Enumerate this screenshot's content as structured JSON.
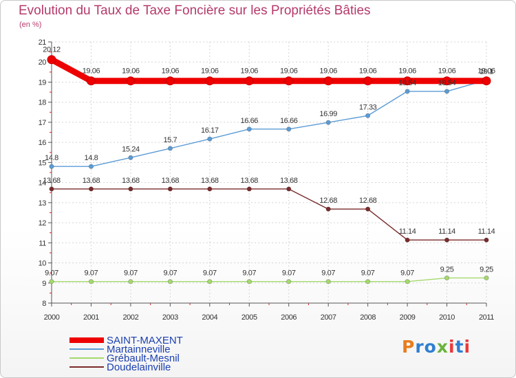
{
  "header": {
    "title": "Evolution du Taux de Taxe Foncière sur les Propriétés Bâties",
    "subtitle": "(en %)"
  },
  "logo": {
    "text": "Proxiti",
    "letter_colors": [
      "#e87d1e",
      "#2f7fd1",
      "#2f7fd1",
      "#6ab33c",
      "#e83a3a",
      "#2f7fd1",
      "#e83a3a"
    ]
  },
  "chart_data": {
    "type": "line",
    "x": [
      "2000",
      "2001",
      "2002",
      "2003",
      "2004",
      "2005",
      "2006",
      "2007",
      "2008",
      "2009",
      "2010",
      "2011"
    ],
    "ylim": [
      8,
      21
    ],
    "yticks": [
      "8",
      "9",
      "10",
      "11",
      "12",
      "13",
      "14",
      "15",
      "16",
      "17",
      "18",
      "19",
      "20",
      "21"
    ],
    "grid": true,
    "legend_position": "bottom-left",
    "series": [
      {
        "name": "SAINT-MAXENT",
        "color": "#ee0000",
        "values": [
          20.12,
          19.06,
          19.06,
          19.06,
          19.06,
          19.06,
          19.06,
          19.06,
          19.06,
          19.06,
          19.06,
          19.06
        ],
        "labels": [
          "20.12",
          "19.06",
          "19.06",
          "19.06",
          "19.06",
          "19.06",
          "19.06",
          "19.06",
          "19.06",
          "19.06",
          "19.06",
          "19.06"
        ]
      },
      {
        "name": "Martainneville",
        "color": "#5b9bd5",
        "values": [
          14.8,
          14.8,
          15.24,
          15.7,
          16.17,
          16.66,
          16.66,
          16.99,
          17.33,
          18.54,
          18.54,
          19.1
        ],
        "labels": [
          "14.8",
          "14.8",
          "15.24",
          "15.7",
          "16.17",
          "16.66",
          "16.66",
          "16.99",
          "17.33",
          "18.54",
          "18.54",
          "19.1"
        ]
      },
      {
        "name": "Grébault-Mesnil",
        "color": "#a4d96c",
        "values": [
          9.07,
          9.07,
          9.07,
          9.07,
          9.07,
          9.07,
          9.07,
          9.07,
          9.07,
          9.07,
          9.25,
          9.25
        ],
        "labels": [
          "9.07",
          "9.07",
          "9.07",
          "9.07",
          "9.07",
          "9.07",
          "9.07",
          "9.07",
          "9.07",
          "9.07",
          "9.25",
          "9.25"
        ]
      },
      {
        "name": "Doudelainville",
        "color": "#7a2a2a",
        "values": [
          13.68,
          13.68,
          13.68,
          13.68,
          13.68,
          13.68,
          13.68,
          12.68,
          12.68,
          11.14,
          11.14,
          11.14
        ],
        "labels": [
          "13.68",
          "13.68",
          "13.68",
          "13.68",
          "13.68",
          "13.68",
          "13.68",
          "12.68",
          "12.68",
          "11.14",
          "11.14",
          "11.14"
        ]
      }
    ]
  }
}
